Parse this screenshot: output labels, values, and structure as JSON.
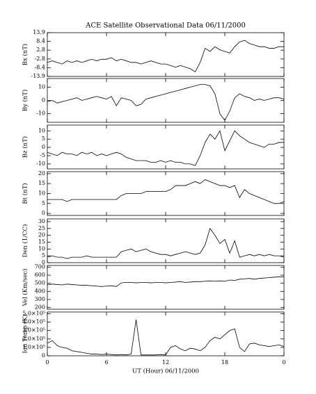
{
  "chart_data": [
    {
      "type": "line",
      "title": "ACE Satellite Observational Data  06/11/2000",
      "ylabel": "Bx (nT)",
      "color": "#000000",
      "x": [
        0,
        0.5,
        1,
        1.5,
        2,
        2.5,
        3,
        3.5,
        4,
        4.5,
        5,
        5.5,
        6,
        6.5,
        7,
        7.5,
        8,
        8.5,
        9,
        9.5,
        10,
        10.5,
        11,
        11.5,
        12,
        12.5,
        13,
        13.5,
        14,
        14.5,
        15,
        15.5,
        16,
        16.5,
        17,
        17.5,
        18,
        18.5,
        19,
        19.5,
        20,
        20.5,
        21,
        21.5,
        22,
        22.5,
        23,
        23.5,
        24
      ],
      "values": [
        -5,
        -4,
        -5,
        -6,
        -4,
        -5,
        -4,
        -5,
        -4,
        -3,
        -4,
        -3,
        -3,
        -2,
        -4,
        -3,
        -4,
        -5,
        -5,
        -6,
        -5,
        -4,
        -5,
        -6,
        -6,
        -7,
        -8,
        -7,
        -8,
        -9,
        -11,
        -5,
        4,
        2,
        5,
        3,
        2,
        1,
        5,
        8,
        9,
        7,
        6,
        5,
        5,
        4,
        4,
        5,
        5
      ],
      "xlim": [
        0,
        24
      ],
      "xticks": [
        0,
        6,
        12,
        18,
        {
          "value": 24,
          "label": "0"
        }
      ],
      "ylim": [
        -13.9,
        13.9
      ],
      "yticks": [
        13.9,
        8.4,
        2.8,
        -2.8,
        -8.4,
        -13.9
      ]
    },
    {
      "type": "line",
      "ylabel": "By (nT)",
      "color": "#000000",
      "x": [
        0,
        0.5,
        1,
        1.5,
        2,
        2.5,
        3,
        3.5,
        4,
        4.5,
        5,
        5.5,
        6,
        6.5,
        7,
        7.5,
        8,
        8.5,
        9,
        9.5,
        10,
        10.5,
        11,
        11.5,
        12,
        12.5,
        13,
        13.5,
        14,
        14.5,
        15,
        15.5,
        16,
        16.5,
        17,
        17.5,
        18,
        18.5,
        19,
        19.5,
        20,
        20.5,
        21,
        21.5,
        22,
        22.5,
        23,
        23.5,
        24
      ],
      "values": [
        -1,
        0,
        -2,
        -1,
        0,
        1,
        2,
        0,
        1,
        2,
        3,
        2,
        1,
        3,
        -4,
        2,
        1,
        0,
        -4,
        -3,
        1,
        2,
        3,
        4,
        5,
        6,
        7,
        8,
        9,
        10,
        11,
        12,
        12,
        11,
        5,
        -10,
        -15,
        -8,
        2,
        5,
        3,
        2,
        0,
        1,
        0,
        1,
        2,
        2,
        1
      ],
      "xlim": [
        0,
        24
      ],
      "xticks": [
        0,
        6,
        12,
        18,
        {
          "value": 24,
          "label": "0"
        }
      ],
      "ylim": [
        -16.5,
        16.5
      ],
      "yticks": [
        10,
        0,
        -10
      ]
    },
    {
      "type": "line",
      "ylabel": "Bz (nT)",
      "color": "#000000",
      "x": [
        0,
        0.5,
        1,
        1.5,
        2,
        2.5,
        3,
        3.5,
        4,
        4.5,
        5,
        5.5,
        6,
        6.5,
        7,
        7.5,
        8,
        8.5,
        9,
        9.5,
        10,
        10.5,
        11,
        11.5,
        12,
        12.5,
        13,
        13.5,
        14,
        14.5,
        15,
        15.5,
        16,
        16.5,
        17,
        17.5,
        18,
        18.5,
        19,
        19.5,
        20,
        20.5,
        21,
        21.5,
        22,
        22.5,
        23,
        23.5,
        24
      ],
      "values": [
        -3,
        -4,
        -5,
        -3,
        -4,
        -4,
        -5,
        -3,
        -4,
        -3,
        -5,
        -4,
        -5,
        -4,
        -3,
        -4,
        -6,
        -7,
        -8,
        -8,
        -8,
        -9,
        -9,
        -8,
        -9,
        -8,
        -9,
        -9,
        -10,
        -10,
        -11,
        -5,
        3,
        8,
        5,
        10,
        -2,
        4,
        10,
        7,
        5,
        3,
        2,
        1,
        0,
        2,
        2,
        3,
        3
      ],
      "xlim": [
        0,
        24
      ],
      "xticks": [
        0,
        6,
        12,
        18,
        {
          "value": 24,
          "label": "0"
        }
      ],
      "ylim": [
        -13,
        13.5
      ],
      "yticks": [
        10,
        5,
        0,
        -5,
        -10
      ]
    },
    {
      "type": "line",
      "ylabel": "Bt (nT)",
      "color": "#000000",
      "x": [
        0,
        0.5,
        1,
        1.5,
        2,
        2.5,
        3,
        3.5,
        4,
        4.5,
        5,
        5.5,
        6,
        6.5,
        7,
        7.5,
        8,
        8.5,
        9,
        9.5,
        10,
        10.5,
        11,
        11.5,
        12,
        12.5,
        13,
        13.5,
        14,
        14.5,
        15,
        15.5,
        16,
        16.5,
        17,
        17.5,
        18,
        18.5,
        19,
        19.5,
        20,
        20.5,
        21,
        21.5,
        22,
        22.5,
        23,
        23.5,
        24
      ],
      "values": [
        7,
        7,
        7,
        7,
        6,
        7,
        7,
        7,
        7,
        7,
        7,
        7,
        7,
        7,
        7,
        9,
        10,
        10,
        10,
        10,
        11,
        11,
        11,
        11,
        11,
        12,
        14,
        14,
        14,
        15,
        16,
        15,
        17,
        16,
        15,
        14,
        14,
        13,
        14,
        8,
        12,
        10,
        9,
        8,
        7,
        6,
        5,
        5,
        6
      ],
      "xlim": [
        0,
        24
      ],
      "xticks": [
        0,
        6,
        12,
        18,
        {
          "value": 24,
          "label": "0"
        }
      ],
      "ylim": [
        -1,
        21
      ],
      "yticks": [
        0,
        5,
        10,
        15,
        20
      ]
    },
    {
      "type": "line",
      "ylabel": "Den (1/CC)",
      "color": "#000000",
      "x": [
        0,
        0.5,
        1,
        1.5,
        2,
        2.5,
        3,
        3.5,
        4,
        4.5,
        5,
        5.5,
        6,
        6.5,
        7,
        7.5,
        8,
        8.5,
        9,
        9.5,
        10,
        10.5,
        11,
        11.5,
        12,
        12.5,
        13,
        13.5,
        14,
        14.5,
        15,
        15.5,
        16,
        16.5,
        17,
        17.5,
        18,
        18.5,
        19,
        19.5,
        20,
        20.5,
        21,
        21.5,
        22,
        22.5,
        23,
        23.5,
        24
      ],
      "values": [
        4,
        5,
        4,
        4,
        3,
        4,
        4,
        4,
        5,
        4,
        4,
        4,
        4,
        4,
        4,
        8,
        9,
        10,
        8,
        9,
        10,
        8,
        7,
        6,
        6,
        5,
        6,
        7,
        8,
        7,
        6,
        7,
        13,
        25,
        20,
        14,
        17,
        7,
        16,
        4,
        5,
        6,
        5,
        6,
        5,
        6,
        5,
        5,
        4
      ],
      "xlim": [
        0,
        24
      ],
      "xticks": [
        0,
        6,
        12,
        18,
        {
          "value": 24,
          "label": "0"
        }
      ],
      "ylim": [
        0,
        32
      ],
      "yticks": [
        0,
        5,
        10,
        15,
        20,
        25,
        30
      ]
    },
    {
      "type": "line",
      "ylabel": "Vel (Km/sec)",
      "color": "#000000",
      "x": [
        0,
        0.5,
        1,
        1.5,
        2,
        2.5,
        3,
        3.5,
        4,
        4.5,
        5,
        5.5,
        6,
        6.5,
        7,
        7.5,
        8,
        8.5,
        9,
        9.5,
        10,
        10.5,
        11,
        11.5,
        12,
        12.5,
        13,
        13.5,
        14,
        14.5,
        15,
        15.5,
        16,
        16.5,
        17,
        17.5,
        18,
        18.5,
        19,
        19.5,
        20,
        20.5,
        21,
        21.5,
        22,
        22.5,
        23,
        23.5,
        24
      ],
      "values": [
        480,
        490,
        485,
        480,
        490,
        485,
        480,
        475,
        475,
        470,
        465,
        460,
        465,
        470,
        460,
        505,
        510,
        510,
        505,
        510,
        510,
        505,
        510,
        510,
        505,
        510,
        515,
        520,
        510,
        515,
        520,
        520,
        525,
        530,
        525,
        530,
        525,
        540,
        535,
        550,
        555,
        560,
        550,
        560,
        565,
        570,
        575,
        580,
        580
      ],
      "xlim": [
        0,
        24
      ],
      "xticks": [
        0,
        6,
        12,
        18,
        {
          "value": 24,
          "label": "0"
        }
      ],
      "ylim": [
        180,
        720
      ],
      "yticks": [
        200,
        300,
        400,
        500,
        600,
        700
      ]
    },
    {
      "type": "line",
      "ylabel": "Ion Temp (K)",
      "xlabel": "UT (Hour)  06/11/2000",
      "color": "#000000",
      "x": [
        0,
        0.5,
        1,
        1.5,
        2,
        2.5,
        3,
        3.5,
        4,
        4.5,
        5,
        5.5,
        6,
        6.5,
        7,
        7.5,
        8,
        8.5,
        9,
        9.5,
        10,
        10.5,
        11,
        11.5,
        12,
        12.5,
        13,
        13.5,
        14,
        14.5,
        15,
        15.5,
        16,
        16.5,
        17,
        17.5,
        18,
        18.5,
        19,
        19.5,
        20,
        20.5,
        21,
        21.5,
        22,
        22.5,
        23,
        23.5,
        24
      ],
      "values": [
        150000,
        180000,
        120000,
        100000,
        90000,
        60000,
        50000,
        40000,
        30000,
        20000,
        20000,
        15000,
        20000,
        15000,
        10000,
        15000,
        10000,
        20000,
        430000,
        10000,
        10000,
        10000,
        10000,
        15000,
        10000,
        100000,
        120000,
        80000,
        60000,
        90000,
        80000,
        60000,
        100000,
        180000,
        220000,
        200000,
        250000,
        300000,
        320000,
        100000,
        50000,
        140000,
        150000,
        130000,
        120000,
        110000,
        120000,
        130000,
        110000
      ],
      "xlim": [
        0,
        24
      ],
      "xticks": [
        0,
        6,
        12,
        18,
        {
          "value": 24,
          "label": "0"
        }
      ],
      "ylim": [
        0,
        520000
      ],
      "yticks": [
        0,
        {
          "value": 100000,
          "label": "1.0×10⁵"
        },
        {
          "value": 200000,
          "label": "2.0×10⁵"
        },
        {
          "value": 300000,
          "label": "3.0×10⁵"
        },
        {
          "value": 400000,
          "label": "4.0×10⁵"
        },
        {
          "value": 500000,
          "label": "5.0×10⁵"
        }
      ]
    }
  ]
}
